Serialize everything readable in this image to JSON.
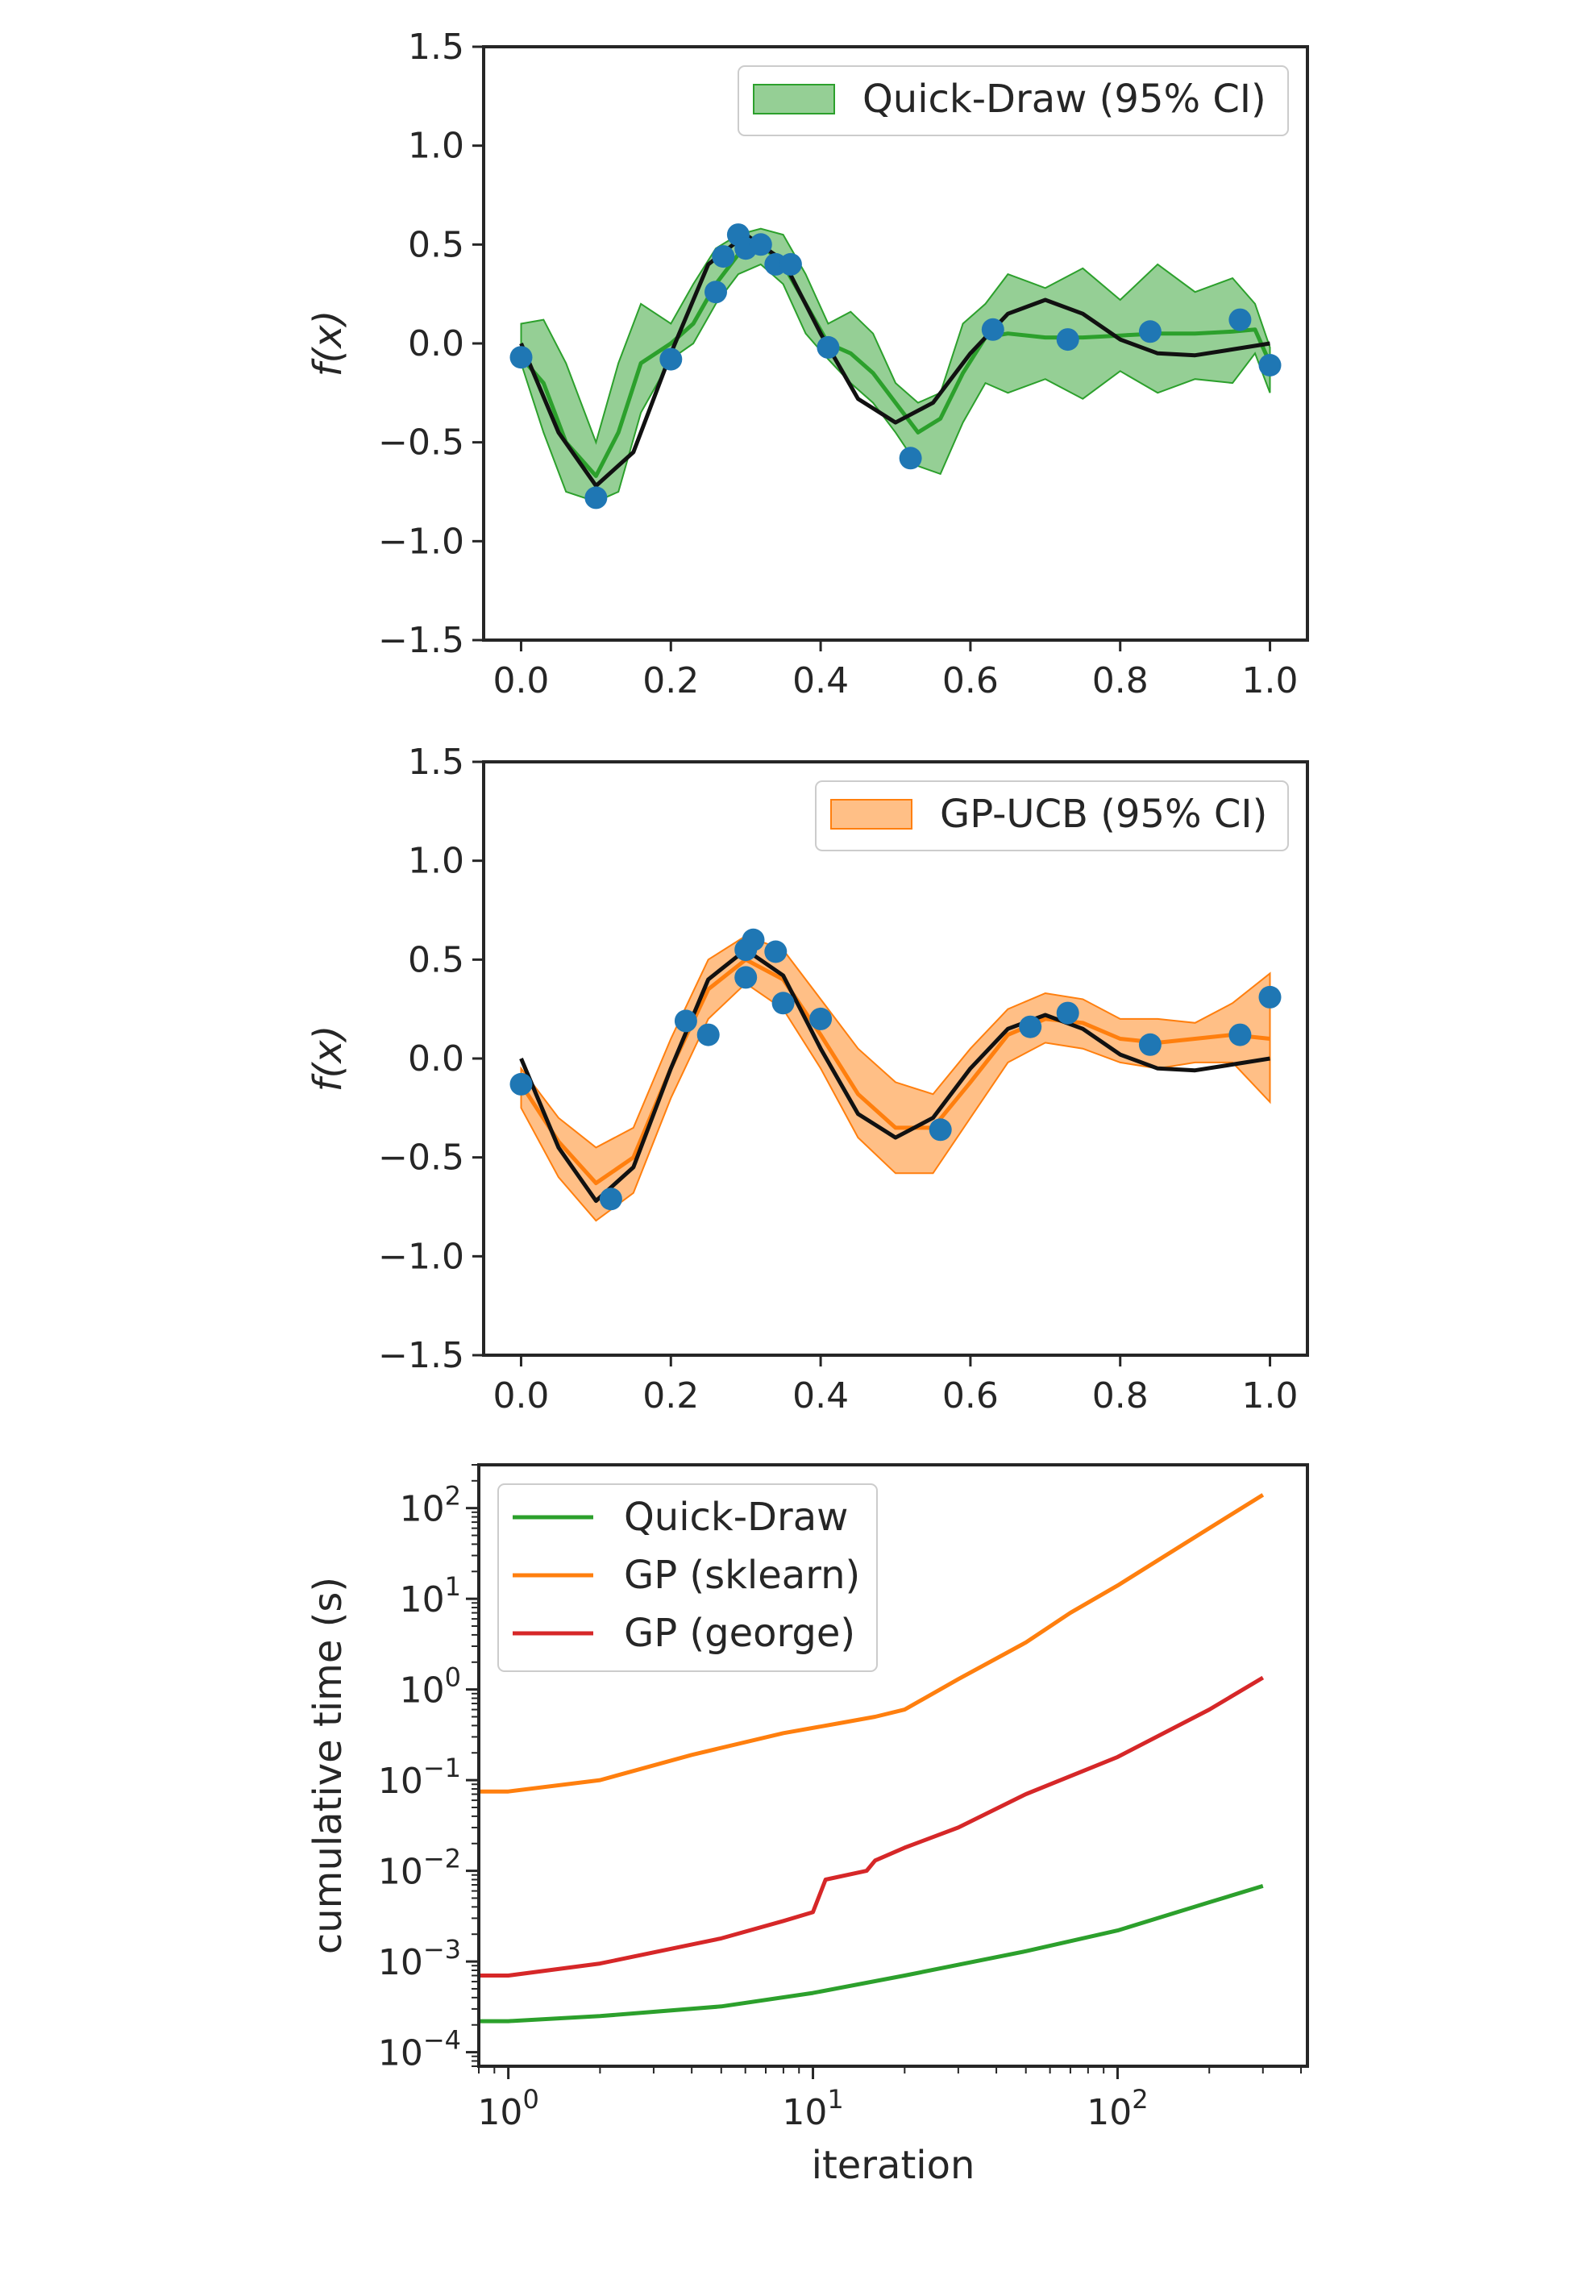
{
  "chart_data": [
    {
      "type": "line",
      "xlabel": "",
      "ylabel": "f(x)",
      "xlim": [
        -0.05,
        1.05
      ],
      "ylim": [
        -1.5,
        1.5
      ],
      "xticks": [
        {
          "value": 0.0,
          "label": "0.0"
        },
        {
          "value": 0.2,
          "label": "0.2"
        },
        {
          "value": 0.4,
          "label": "0.4"
        },
        {
          "value": 0.6,
          "label": "0.6"
        },
        {
          "value": 0.8,
          "label": "0.8"
        },
        {
          "value": 1.0,
          "label": "1.0"
        }
      ],
      "yticks": [
        {
          "value": 1.5,
          "label": "1.5"
        },
        {
          "value": 1.0,
          "label": "1.0"
        },
        {
          "value": 0.5,
          "label": "0.5"
        },
        {
          "value": 0.0,
          "label": "0.0"
        },
        {
          "value": -0.5,
          "label": "−0.5"
        },
        {
          "value": -1.0,
          "label": "−1.0"
        },
        {
          "value": -1.5,
          "label": "−1.5"
        }
      ],
      "legend": {
        "placement": "top-right",
        "label": "Quick-Draw (95% CI)"
      },
      "colors": {
        "band_fill": "#2ca02c",
        "band_edge": "#2ca02c",
        "mean": "#2ca02c",
        "true_function": "#111111",
        "points": "#1f77b4"
      },
      "true_function": {
        "x": [
          0.0,
          0.05,
          0.1,
          0.15,
          0.2,
          0.25,
          0.3,
          0.35,
          0.4,
          0.45,
          0.5,
          0.55,
          0.6,
          0.65,
          0.7,
          0.75,
          0.8,
          0.85,
          0.9,
          0.95,
          1.0
        ],
        "y": [
          0.0,
          -0.45,
          -0.72,
          -0.55,
          -0.05,
          0.4,
          0.55,
          0.42,
          0.05,
          -0.28,
          -0.4,
          -0.3,
          -0.05,
          0.15,
          0.22,
          0.15,
          0.02,
          -0.05,
          -0.06,
          -0.03,
          0.0
        ]
      },
      "mean": {
        "x": [
          0.0,
          0.03,
          0.06,
          0.1,
          0.13,
          0.16,
          0.2,
          0.23,
          0.26,
          0.29,
          0.32,
          0.35,
          0.38,
          0.41,
          0.44,
          0.47,
          0.5,
          0.53,
          0.56,
          0.59,
          0.62,
          0.65,
          0.7,
          0.75,
          0.8,
          0.85,
          0.9,
          0.95,
          0.98,
          1.0
        ],
        "y": [
          -0.07,
          -0.2,
          -0.5,
          -0.67,
          -0.45,
          -0.1,
          0.0,
          0.1,
          0.3,
          0.45,
          0.5,
          0.4,
          0.2,
          0.0,
          -0.05,
          -0.15,
          -0.3,
          -0.45,
          -0.38,
          -0.15,
          0.03,
          0.05,
          0.03,
          0.03,
          0.04,
          0.05,
          0.05,
          0.06,
          0.07,
          -0.1
        ]
      },
      "ci_upper": [
        0.1,
        0.12,
        -0.1,
        -0.5,
        -0.1,
        0.2,
        0.1,
        0.3,
        0.48,
        0.55,
        0.58,
        0.55,
        0.35,
        0.1,
        0.16,
        0.05,
        -0.2,
        -0.3,
        -0.25,
        0.1,
        0.2,
        0.35,
        0.28,
        0.38,
        0.22,
        0.4,
        0.26,
        0.33,
        0.2,
        -0.02
      ],
      "ci_lower": [
        -0.1,
        -0.45,
        -0.75,
        -0.8,
        -0.75,
        -0.35,
        -0.08,
        0.0,
        0.2,
        0.35,
        0.4,
        0.3,
        0.05,
        -0.08,
        -0.2,
        -0.3,
        -0.45,
        -0.62,
        -0.66,
        -0.4,
        -0.2,
        -0.25,
        -0.18,
        -0.28,
        -0.14,
        -0.25,
        -0.18,
        -0.2,
        -0.05,
        -0.25
      ],
      "points": {
        "x": [
          0.0,
          0.1,
          0.2,
          0.26,
          0.27,
          0.29,
          0.3,
          0.32,
          0.34,
          0.36,
          0.41,
          0.52,
          0.63,
          0.73,
          0.84,
          0.96,
          1.0
        ],
        "y": [
          -0.07,
          -0.78,
          -0.08,
          0.26,
          0.44,
          0.55,
          0.48,
          0.5,
          0.4,
          0.4,
          -0.02,
          -0.58,
          0.07,
          0.02,
          0.06,
          0.12,
          -0.11
        ]
      }
    },
    {
      "type": "line",
      "xlabel": "",
      "ylabel": "f(x)",
      "xlim": [
        -0.05,
        1.05
      ],
      "ylim": [
        -1.5,
        1.5
      ],
      "xticks": [
        {
          "value": 0.0,
          "label": "0.0"
        },
        {
          "value": 0.2,
          "label": "0.2"
        },
        {
          "value": 0.4,
          "label": "0.4"
        },
        {
          "value": 0.6,
          "label": "0.6"
        },
        {
          "value": 0.8,
          "label": "0.8"
        },
        {
          "value": 1.0,
          "label": "1.0"
        }
      ],
      "yticks": [
        {
          "value": 1.5,
          "label": "1.5"
        },
        {
          "value": 1.0,
          "label": "1.0"
        },
        {
          "value": 0.5,
          "label": "0.5"
        },
        {
          "value": 0.0,
          "label": "0.0"
        },
        {
          "value": -0.5,
          "label": "−0.5"
        },
        {
          "value": -1.0,
          "label": "−1.0"
        },
        {
          "value": -1.5,
          "label": "−1.5"
        }
      ],
      "legend": {
        "placement": "top-right",
        "label": "GP-UCB (95% CI)"
      },
      "colors": {
        "band_fill": "#ff7f0e",
        "band_edge": "#ff7f0e",
        "mean": "#ff7f0e",
        "true_function": "#111111",
        "points": "#1f77b4"
      },
      "true_function": {
        "x": [
          0.0,
          0.05,
          0.1,
          0.15,
          0.2,
          0.25,
          0.3,
          0.35,
          0.4,
          0.45,
          0.5,
          0.55,
          0.6,
          0.65,
          0.7,
          0.75,
          0.8,
          0.85,
          0.9,
          0.95,
          1.0
        ],
        "y": [
          0.0,
          -0.45,
          -0.72,
          -0.55,
          -0.05,
          0.4,
          0.55,
          0.42,
          0.05,
          -0.28,
          -0.4,
          -0.3,
          -0.05,
          0.15,
          0.22,
          0.15,
          0.02,
          -0.05,
          -0.06,
          -0.03,
          0.0
        ]
      },
      "mean": {
        "x": [
          0.0,
          0.05,
          0.1,
          0.15,
          0.2,
          0.25,
          0.3,
          0.35,
          0.4,
          0.45,
          0.5,
          0.55,
          0.6,
          0.65,
          0.7,
          0.75,
          0.8,
          0.85,
          0.9,
          0.95,
          1.0
        ],
        "y": [
          -0.13,
          -0.42,
          -0.63,
          -0.5,
          -0.05,
          0.35,
          0.5,
          0.4,
          0.12,
          -0.18,
          -0.35,
          -0.35,
          -0.12,
          0.12,
          0.2,
          0.18,
          0.1,
          0.08,
          0.1,
          0.12,
          0.1
        ]
      },
      "ci_upper": [
        -0.05,
        -0.3,
        -0.45,
        -0.35,
        0.1,
        0.5,
        0.62,
        0.55,
        0.3,
        0.05,
        -0.12,
        -0.18,
        0.05,
        0.25,
        0.33,
        0.3,
        0.2,
        0.2,
        0.18,
        0.28,
        0.43
      ],
      "ci_lower": [
        -0.25,
        -0.6,
        -0.82,
        -0.68,
        -0.2,
        0.2,
        0.38,
        0.25,
        -0.05,
        -0.4,
        -0.58,
        -0.58,
        -0.3,
        -0.02,
        0.08,
        0.05,
        -0.02,
        -0.05,
        -0.02,
        -0.02,
        -0.22
      ],
      "points": {
        "x": [
          0.0,
          0.12,
          0.22,
          0.25,
          0.3,
          0.3,
          0.31,
          0.34,
          0.35,
          0.4,
          0.56,
          0.68,
          0.73,
          0.84,
          0.96,
          1.0
        ],
        "y": [
          -0.13,
          -0.71,
          0.19,
          0.12,
          0.41,
          0.55,
          0.6,
          0.54,
          0.28,
          0.2,
          -0.36,
          0.16,
          0.23,
          0.07,
          0.12,
          0.31
        ]
      }
    },
    {
      "type": "line",
      "xlabel": "iteration",
      "ylabel": "cumulative time (s)",
      "xscale": "log",
      "yscale": "log",
      "xlim": [
        0.8,
        420
      ],
      "ylim": [
        7e-05,
        300
      ],
      "xticks": [
        {
          "value": 1,
          "base": "10",
          "exp": "0"
        },
        {
          "value": 10,
          "base": "10",
          "exp": "1"
        },
        {
          "value": 100,
          "base": "10",
          "exp": "2"
        }
      ],
      "yticks": [
        {
          "value": 100,
          "base": "10",
          "exp": "2"
        },
        {
          "value": 10,
          "base": "10",
          "exp": "1"
        },
        {
          "value": 1,
          "base": "10",
          "exp": "0"
        },
        {
          "value": 0.1,
          "base": "10",
          "exp": "−1"
        },
        {
          "value": 0.01,
          "base": "10",
          "exp": "−2"
        },
        {
          "value": 0.001,
          "base": "10",
          "exp": "−3"
        },
        {
          "value": 0.0001,
          "base": "10",
          "exp": "−4"
        }
      ],
      "legend": {
        "placement": "top-left"
      },
      "series": [
        {
          "name": "Quick-Draw",
          "color": "#2ca02c",
          "x": [
            0.8,
            1,
            2,
            5,
            10,
            20,
            50,
            100,
            200,
            300
          ],
          "y": [
            0.00022,
            0.00022,
            0.00025,
            0.00032,
            0.00045,
            0.0007,
            0.0013,
            0.0022,
            0.0045,
            0.0068
          ]
        },
        {
          "name": "GP (sklearn)",
          "color": "#ff7f0e",
          "x": [
            0.8,
            1,
            2,
            4,
            8,
            12,
            16,
            20,
            30,
            50,
            70,
            100,
            200,
            300
          ],
          "y": [
            0.075,
            0.075,
            0.1,
            0.19,
            0.33,
            0.42,
            0.5,
            0.6,
            1.3,
            3.3,
            7.0,
            14,
            60,
            140
          ]
        },
        {
          "name": "GP (george)",
          "color": "#d62728",
          "x": [
            0.8,
            1,
            2,
            5,
            8,
            10,
            11,
            15,
            16,
            20,
            30,
            50,
            100,
            200,
            300
          ],
          "y": [
            0.0007,
            0.0007,
            0.00095,
            0.0018,
            0.0028,
            0.0035,
            0.008,
            0.01,
            0.013,
            0.018,
            0.03,
            0.07,
            0.18,
            0.6,
            1.35
          ]
        }
      ]
    }
  ]
}
